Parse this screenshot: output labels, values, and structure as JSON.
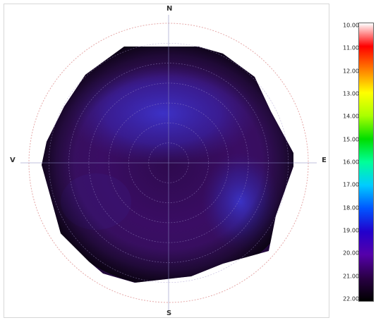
{
  "chart_data": {
    "type": "heatmap",
    "projection": "polar",
    "title": "",
    "compass": {
      "north": "N",
      "east": "E",
      "south": "S",
      "west": "V"
    },
    "colorbar": {
      "ticks": [
        "10.00",
        "11.00",
        "12.00",
        "13.00",
        "14.00",
        "15.00",
        "16.00",
        "17.00",
        "18.00",
        "19.00",
        "20.00",
        "21.00",
        "22.00"
      ],
      "range": [
        10,
        22
      ],
      "reversed": true,
      "colors": [
        "#ffffff",
        "#ff0000",
        "#ff7f00",
        "#ffff00",
        "#aaff00",
        "#00dd00",
        "#00ff99",
        "#00ccff",
        "#0055ff",
        "#2200cc",
        "#5500aa",
        "#2a0045",
        "#000000"
      ]
    },
    "grid": true,
    "dominant_value_range": [
      19,
      21
    ],
    "colors": {
      "outer_dark": "#1a0626",
      "body": "#3a0b63",
      "blue_regions": "#3c2fc3"
    }
  }
}
